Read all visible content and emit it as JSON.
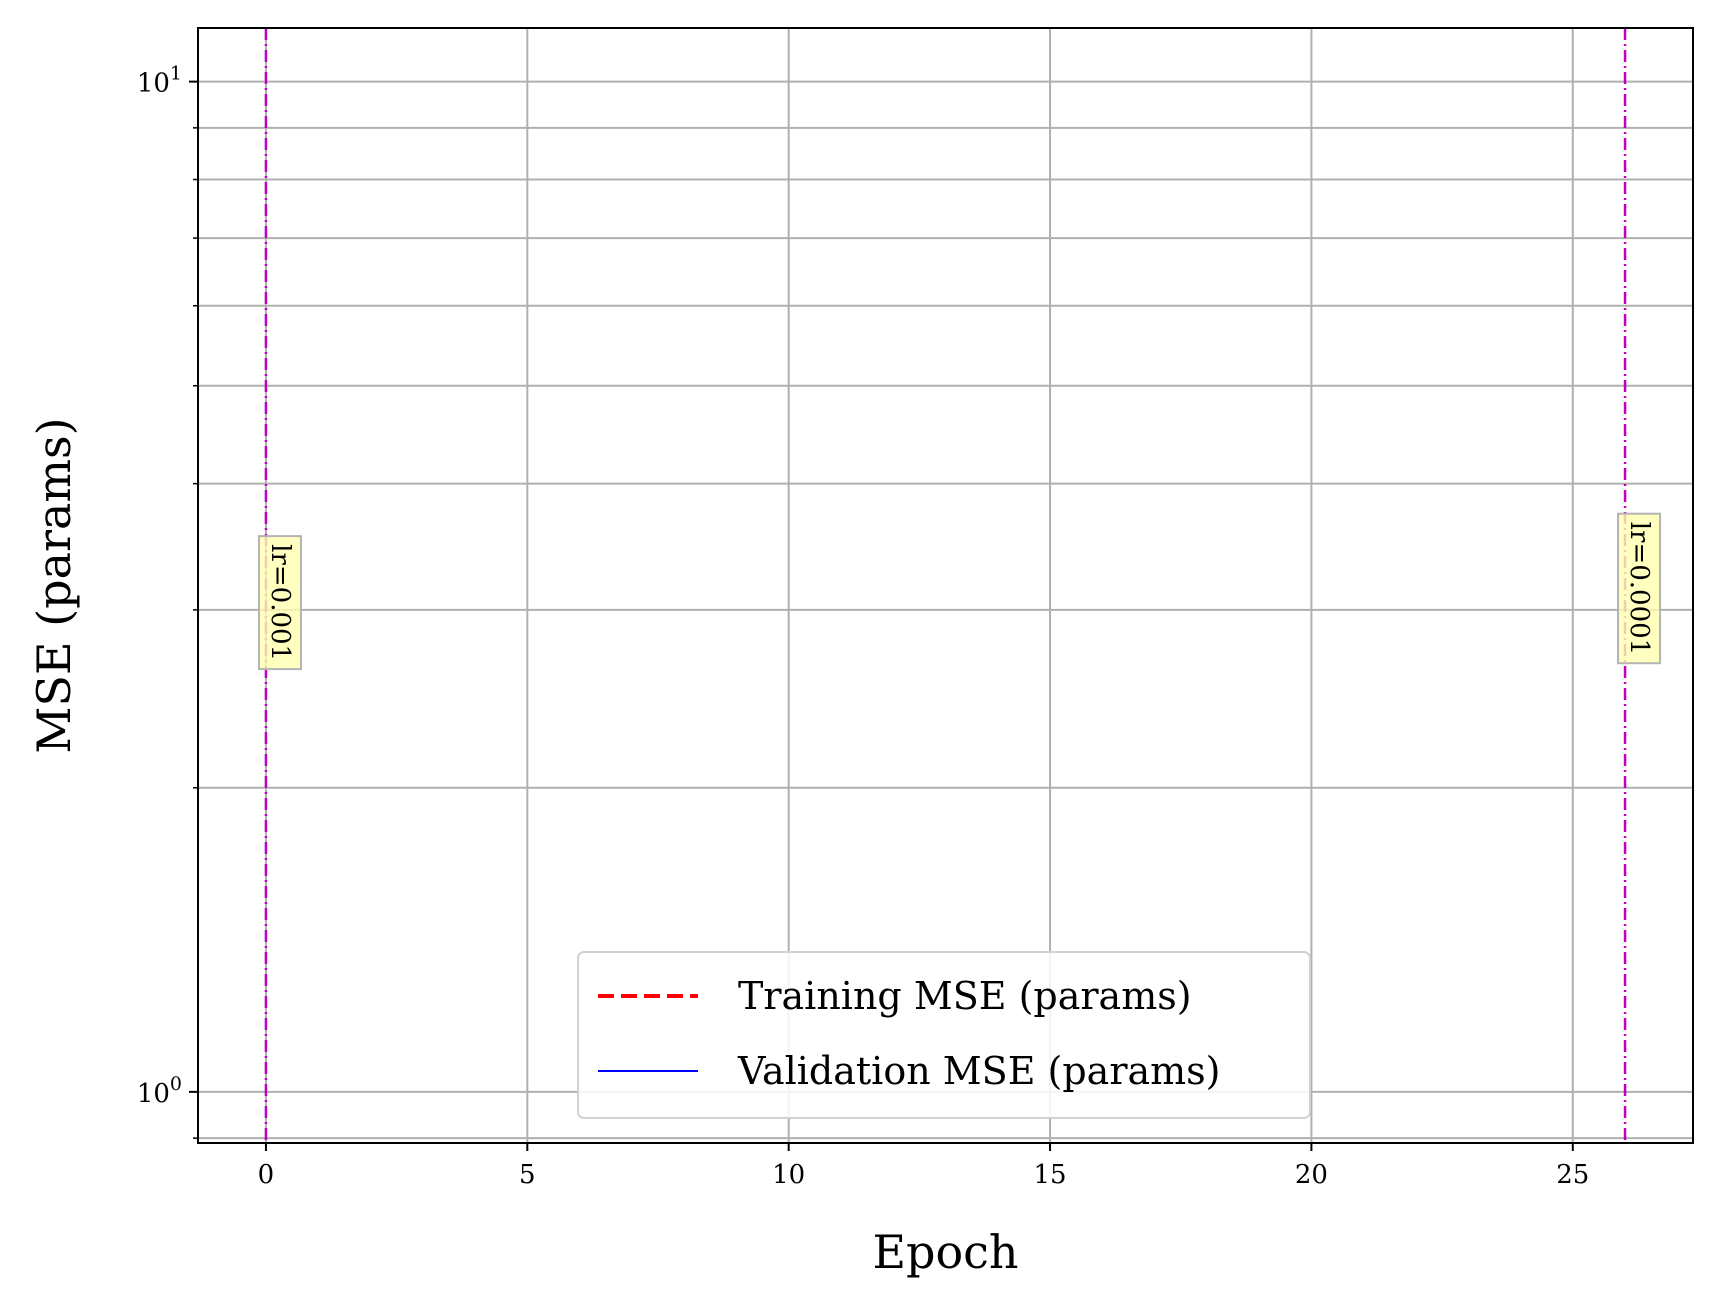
{
  "chart_data": {
    "type": "line",
    "title": "",
    "xlabel": "Epoch",
    "ylabel": "MSE (params)",
    "xlim": [
      -1.3,
      27.3
    ],
    "ylim": [
      0.89,
      11.3
    ],
    "yscale": "log",
    "grid": true,
    "xticks": [
      0,
      5,
      10,
      15,
      20,
      25
    ],
    "xtick_labels": [
      "0",
      "5",
      "10",
      "15",
      "20",
      "25"
    ],
    "yticks_major": [
      1,
      10
    ],
    "ytick_label_bases": [
      "10",
      "10"
    ],
    "ytick_label_exponents": [
      "0",
      "1"
    ],
    "yticks_minor": [
      0.9,
      2,
      3,
      4,
      5,
      6,
      7,
      8,
      9
    ],
    "series": [
      {
        "name": "Training MSE (params)",
        "x": [],
        "y": [],
        "color": "#ff0000",
        "linestyle": "dashed"
      },
      {
        "name": "Validation MSE (params)",
        "x": [],
        "y": [],
        "color": "#0000ff",
        "linestyle": "solid"
      }
    ],
    "vlines": [
      {
        "x": 0,
        "color": "#bf00bf",
        "label": "lr=0.001"
      },
      {
        "x": 26,
        "color": "#bf00bf",
        "label": "lr=0.0001"
      }
    ],
    "legend_position": "lower-center",
    "annotation_box_color": "#ffffb0"
  }
}
